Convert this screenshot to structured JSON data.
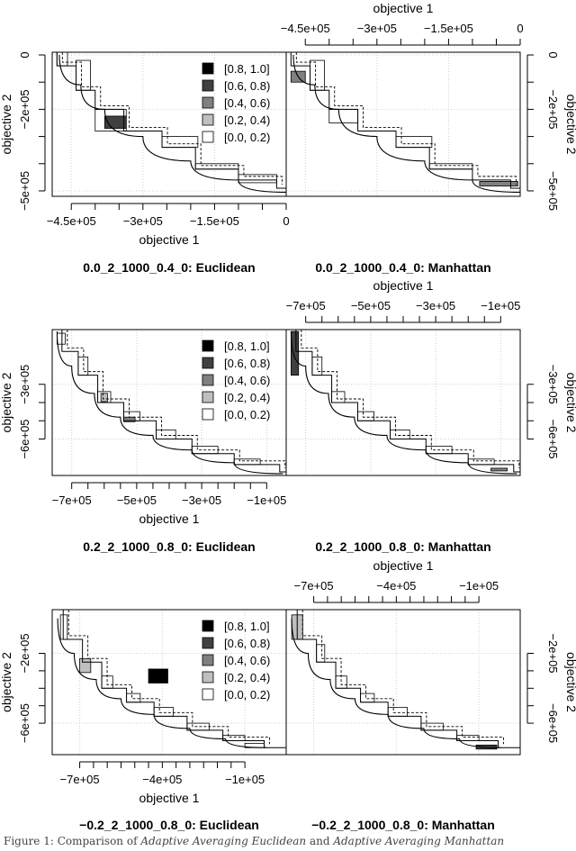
{
  "figure": {
    "caption_prefix": "Figure 1: Comparison of ",
    "caption_italic_1": "Adaptive Averaging Euclidean",
    "caption_mid": " and ",
    "caption_italic_2": "Adaptive Averaging Manhattan"
  },
  "legend_entries": [
    "[0.8, 1.0]",
    "[0.6, 0.8)",
    "[0.4, 0.6)",
    "[0.2, 0.4)",
    "[0.0, 0.2)"
  ],
  "legend_colors": [
    "#000000",
    "#404040",
    "#808080",
    "#bfbfbf",
    "#ffffff"
  ],
  "chart_data": [
    {
      "type": "area",
      "panel_titles": [
        "0.0_2_1000_0.4_0: Euclidean",
        "0.0_2_1000_0.4_0: Manhattan"
      ],
      "xlabel": "objective 1",
      "ylabel": "objective 2",
      "x_ticks": [
        -450000,
        -300000,
        -150000,
        0
      ],
      "x_tick_labels": [
        "−4.5e+05",
        "−3e+05",
        "−1.5e+05",
        "0"
      ],
      "x_minor_step": 50000,
      "y_ticks": [
        0,
        -200000,
        -500000
      ],
      "y_tick_labels": [
        "0",
        "−2e+05",
        "−5e+05"
      ],
      "y_minor_step": 100000,
      "xlim": [
        -490000,
        0
      ],
      "ylim": [
        -520000,
        10000
      ],
      "grid": true,
      "legend_position": "top-right of left panel",
      "attainment_steps": [
        [
          -480000,
          -40000
        ],
        [
          -440000,
          -130000
        ],
        [
          -400000,
          -200000
        ],
        [
          -340000,
          -280000
        ],
        [
          -260000,
          -340000
        ],
        [
          -190000,
          -420000
        ],
        [
          -100000,
          -460000
        ],
        [
          -20000,
          -490000
        ]
      ],
      "reference_front": [
        [
          -475000,
          0
        ],
        [
          -430000,
          -110000
        ],
        [
          -380000,
          -200000
        ],
        [
          -300000,
          -300000
        ],
        [
          -200000,
          -390000
        ],
        [
          -100000,
          -460000
        ],
        [
          0,
          -505000
        ]
      ],
      "regions": [
        [
          {
            "x": [
              -480000,
              -458000
            ],
            "y": [
              -40000,
              10000
            ],
            "level": 4
          },
          {
            "x": [
              -440000,
              -410000
            ],
            "y": [
              -130000,
              -20000
            ],
            "level": 4
          },
          {
            "x": [
              -400000,
              -335000
            ],
            "y": [
              -280000,
              -200000
            ],
            "level": 4
          },
          {
            "x": [
              -380000,
              -335000
            ],
            "y": [
              -270000,
              -225000
            ],
            "level": 1
          },
          {
            "x": [
              -260000,
              -185000
            ],
            "y": [
              -340000,
              -300000
            ],
            "level": 4
          },
          {
            "x": [
              -190000,
              -100000
            ],
            "y": [
              -420000,
              -400000
            ],
            "level": 4
          },
          {
            "x": [
              -100000,
              -20000
            ],
            "y": [
              -470000,
              -440000
            ],
            "level": 4
          }
        ],
        [
          {
            "x": [
              -480000,
              -450000
            ],
            "y": [
              -100000,
              -60000
            ],
            "level": 2
          },
          {
            "x": [
              -440000,
              -410000
            ],
            "y": [
              -130000,
              -20000
            ],
            "level": 4
          },
          {
            "x": [
              -400000,
              -340000
            ],
            "y": [
              -250000,
              -200000
            ],
            "level": 4
          },
          {
            "x": [
              -260000,
              -185000
            ],
            "y": [
              -340000,
              -300000
            ],
            "level": 4
          },
          {
            "x": [
              -190000,
              -100000
            ],
            "y": [
              -420000,
              -400000
            ],
            "level": 4
          },
          {
            "x": [
              -85000,
              -5000
            ],
            "y": [
              -482000,
              -465000
            ],
            "level": 2
          }
        ]
      ]
    },
    {
      "type": "area",
      "panel_titles": [
        "0.2_2_1000_0.8_0: Euclidean",
        "0.2_2_1000_0.8_0: Manhattan"
      ],
      "xlabel": "objective 1",
      "ylabel": "objective 2",
      "x_ticks": [
        -700000,
        -500000,
        -300000,
        -100000
      ],
      "x_tick_labels": [
        "−7e+05",
        "−5e+05",
        "−3e+05",
        "−1e+05"
      ],
      "x_minor_step": 50000,
      "y_ticks": [
        -300000,
        -600000
      ],
      "y_tick_labels": [
        "−3e+05",
        "−6e+05"
      ],
      "y_minor_step": 100000,
      "xlim": [
        -760000,
        -40000
      ],
      "ylim": [
        -800000,
        0
      ],
      "grid": true,
      "legend_position": "top-right of left panel",
      "attainment_steps": [
        [
          -730000,
          -120000
        ],
        [
          -680000,
          -250000
        ],
        [
          -620000,
          -400000
        ],
        [
          -540000,
          -500000
        ],
        [
          -440000,
          -600000
        ],
        [
          -330000,
          -680000
        ],
        [
          -200000,
          -740000
        ],
        [
          -60000,
          -780000
        ]
      ],
      "reference_front": [
        [
          -745000,
          -10000
        ],
        [
          -700000,
          -200000
        ],
        [
          -630000,
          -350000
        ],
        [
          -550000,
          -480000
        ],
        [
          -450000,
          -580000
        ],
        [
          -330000,
          -660000
        ],
        [
          -200000,
          -730000
        ],
        [
          -50000,
          -790000
        ]
      ],
      "regions": [
        [
          {
            "x": [
              -745000,
              -720000
            ],
            "y": [
              -80000,
              -20000
            ],
            "level": 4
          },
          {
            "x": [
              -680000,
              -650000
            ],
            "y": [
              -250000,
              -150000
            ],
            "level": 4
          },
          {
            "x": [
              -620000,
              -580000
            ],
            "y": [
              -400000,
              -340000
            ],
            "level": 4
          },
          {
            "x": [
              -610000,
              -590000
            ],
            "y": [
              -395000,
              -350000
            ],
            "level": 3
          },
          {
            "x": [
              -540000,
              -490000
            ],
            "y": [
              -500000,
              -450000
            ],
            "level": 4
          },
          {
            "x": [
              -540000,
              -505000
            ],
            "y": [
              -505000,
              -480000
            ],
            "level": 2
          },
          {
            "x": [
              -440000,
              -380000
            ],
            "y": [
              -600000,
              -550000
            ],
            "level": 4
          },
          {
            "x": [
              -330000,
              -250000
            ],
            "y": [
              -680000,
              -640000
            ],
            "level": 4
          },
          {
            "x": [
              -200000,
              -120000
            ],
            "y": [
              -740000,
              -710000
            ],
            "level": 4
          }
        ],
        [
          {
            "x": [
              -745000,
              -722000
            ],
            "y": [
              -250000,
              -10000
            ],
            "level": 1
          },
          {
            "x": [
              -680000,
              -650000
            ],
            "y": [
              -250000,
              -150000
            ],
            "level": 4
          },
          {
            "x": [
              -620000,
              -580000
            ],
            "y": [
              -400000,
              -340000
            ],
            "level": 4
          },
          {
            "x": [
              -540000,
              -490000
            ],
            "y": [
              -500000,
              -450000
            ],
            "level": 4
          },
          {
            "x": [
              -440000,
              -380000
            ],
            "y": [
              -600000,
              -550000
            ],
            "level": 4
          },
          {
            "x": [
              -330000,
              -250000
            ],
            "y": [
              -680000,
              -640000
            ],
            "level": 4
          },
          {
            "x": [
              -200000,
              -120000
            ],
            "y": [
              -740000,
              -710000
            ],
            "level": 4
          },
          {
            "x": [
              -130000,
              -80000
            ],
            "y": [
              -775000,
              -760000
            ],
            "level": 2
          }
        ]
      ]
    },
    {
      "type": "area",
      "panel_titles": [
        "−0.2_2_1000_0.8_0: Euclidean",
        "−0.2_2_1000_0.8_0: Manhattan"
      ],
      "xlabel": "objective 1",
      "ylabel": "objective 2",
      "x_ticks": [
        -700000,
        -400000,
        -100000
      ],
      "x_tick_labels": [
        "−7e+05",
        "−4e+05",
        "−1e+05"
      ],
      "x_minor_step": 50000,
      "y_ticks": [
        -200000,
        -600000
      ],
      "y_tick_labels": [
        "−2e+05",
        "−6e+05"
      ],
      "y_minor_step": 100000,
      "xlim": [
        -800000,
        50000
      ],
      "ylim": [
        -780000,
        50000
      ],
      "grid": true,
      "legend_position": "top-right of left panel",
      "attainment_steps": [
        [
          -760000,
          -120000
        ],
        [
          -690000,
          -250000
        ],
        [
          -620000,
          -400000
        ],
        [
          -530000,
          -480000
        ],
        [
          -430000,
          -560000
        ],
        [
          -310000,
          -640000
        ],
        [
          -180000,
          -700000
        ],
        [
          -30000,
          -740000
        ]
      ],
      "reference_front": [
        [
          -780000,
          0
        ],
        [
          -720000,
          -200000
        ],
        [
          -640000,
          -350000
        ],
        [
          -550000,
          -460000
        ],
        [
          -430000,
          -550000
        ],
        [
          -300000,
          -630000
        ],
        [
          -170000,
          -690000
        ],
        [
          -20000,
          -740000
        ]
      ],
      "regions": [
        [
          {
            "x": [
              -770000,
              -745000
            ],
            "y": [
              -120000,
              20000
            ],
            "level": 4
          },
          {
            "x": [
              -700000,
              -660000
            ],
            "y": [
              -310000,
              -230000
            ],
            "level": 3
          },
          {
            "x": [
              -620000,
              -580000
            ],
            "y": [
              -400000,
              -330000
            ],
            "level": 4
          },
          {
            "x": [
              -450000,
              -380000
            ],
            "y": [
              -370000,
              -290000
            ],
            "level": 0
          },
          {
            "x": [
              -530000,
              -480000
            ],
            "y": [
              -480000,
              -430000
            ],
            "level": 4
          },
          {
            "x": [
              -430000,
              -360000
            ],
            "y": [
              -560000,
              -510000
            ],
            "level": 4
          },
          {
            "x": [
              -310000,
              -230000
            ],
            "y": [
              -640000,
              -600000
            ],
            "level": 4
          },
          {
            "x": [
              -180000,
              -100000
            ],
            "y": [
              -700000,
              -670000
            ],
            "level": 4
          },
          {
            "x": [
              -100000,
              -30000
            ],
            "y": [
              -740000,
              -715000
            ],
            "level": 4
          }
        ],
        [
          {
            "x": [
              -780000,
              -740000
            ],
            "y": [
              -120000,
              20000
            ],
            "level": 3
          },
          {
            "x": [
              -690000,
              -660000
            ],
            "y": [
              -250000,
              -150000
            ],
            "level": 4
          },
          {
            "x": [
              -620000,
              -580000
            ],
            "y": [
              -400000,
              -330000
            ],
            "level": 4
          },
          {
            "x": [
              -530000,
              -480000
            ],
            "y": [
              -480000,
              -430000
            ],
            "level": 4
          },
          {
            "x": [
              -430000,
              -360000
            ],
            "y": [
              -560000,
              -510000
            ],
            "level": 4
          },
          {
            "x": [
              -310000,
              -230000
            ],
            "y": [
              -640000,
              -600000
            ],
            "level": 4
          },
          {
            "x": [
              -180000,
              -100000
            ],
            "y": [
              -700000,
              -670000
            ],
            "level": 4
          },
          {
            "x": [
              -110000,
              -35000
            ],
            "y": [
              -748000,
              -725000
            ],
            "level": 1
          }
        ]
      ]
    }
  ]
}
